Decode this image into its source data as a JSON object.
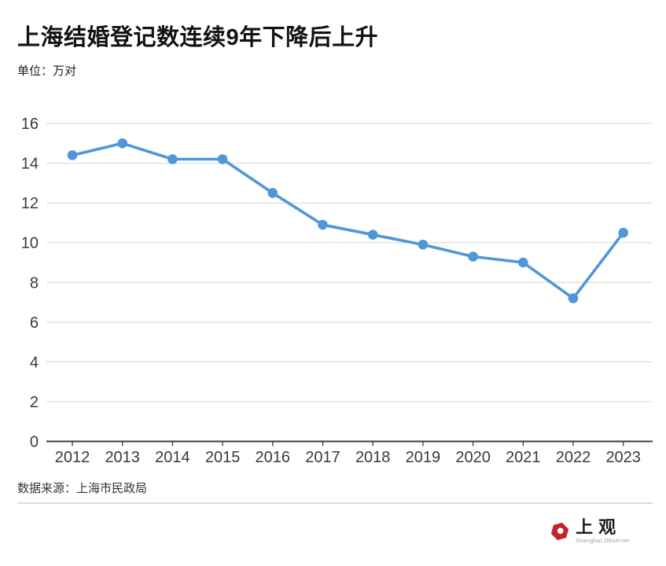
{
  "header": {
    "title": "上海结婚登记数连续9年下降后上升",
    "subtitle": "单位：万对"
  },
  "footer": {
    "source": "数据来源：上海市民政局"
  },
  "logo": {
    "cn": "上观",
    "en": "Shanghai Observer",
    "icon": "shanghai-observer-hexagon-icon",
    "red": "#c4232b"
  },
  "chart_data": {
    "type": "line",
    "title": "上海结婚登记数连续9年下降后上升",
    "unit_label": "单位：万对",
    "categories": [
      "2012",
      "2013",
      "2014",
      "2015",
      "2016",
      "2017",
      "2018",
      "2019",
      "2020",
      "2021",
      "2022",
      "2023"
    ],
    "values": [
      14.4,
      15.0,
      14.2,
      14.2,
      12.5,
      10.9,
      10.4,
      9.9,
      9.3,
      9.0,
      7.2,
      10.5
    ],
    "ylim": [
      0,
      16
    ],
    "yticks": [
      0,
      2,
      4,
      6,
      8,
      10,
      12,
      14,
      16
    ],
    "grid": true,
    "legend_position": "none",
    "line_color": "#4f97d9",
    "point_color": "#4f97d9",
    "grid_color": "#dcdcdc",
    "axis_color": "#3d3d3d",
    "label_color": "#3a3a3a",
    "source": "数据来源：上海市民政局"
  }
}
